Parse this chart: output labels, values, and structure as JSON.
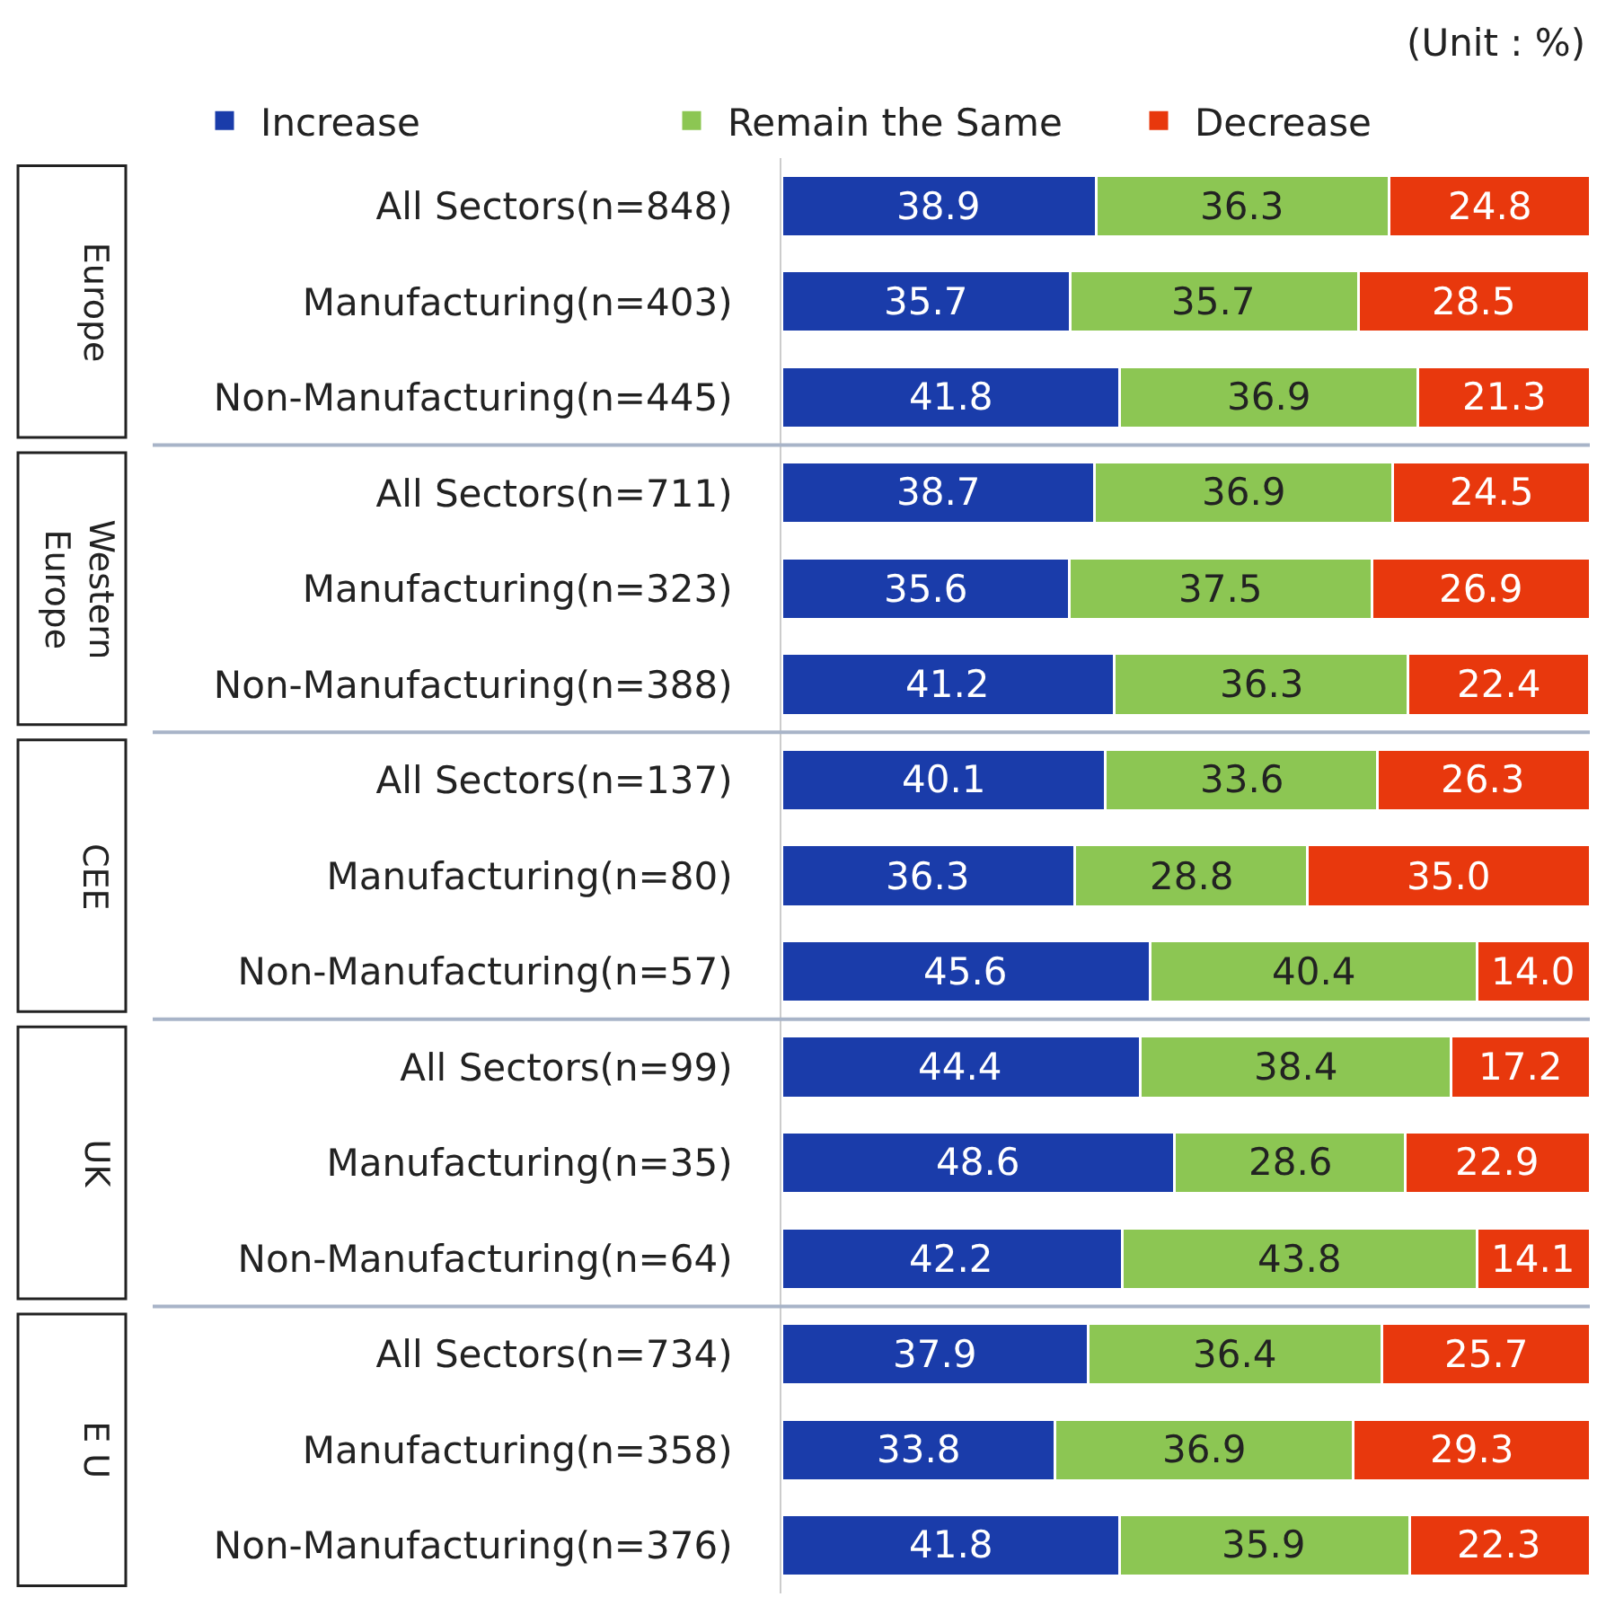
{
  "chart_data": {
    "type": "bar",
    "orientation": "horizontal",
    "stacked": true,
    "data_labels": true,
    "legend": "top",
    "tick_labels": "y",
    "xlim": [
      0,
      100
    ],
    "categories": [
      "All Sectors(n=848)",
      "Manufacturing(n=403)",
      "Non-Manufacturing(n=445)",
      "All Sectors(n=711)",
      "Manufacturing(n=323)",
      "Non-Manufacturing(n=388)",
      "All Sectors(n=137)",
      "Manufacturing(n=80)",
      "Non-Manufacturing(n=57)",
      "All Sectors(n=99)",
      "Manufacturing(n=35)",
      "Non-Manufacturing(n=64)",
      "All Sectors(n=734)",
      "Manufacturing(n=358)",
      "Non-Manufacturing(n=376)"
    ],
    "series": [
      {
        "name": "Increase",
        "color": "#1a3caa",
        "values": [
          38.9,
          35.7,
          41.8,
          38.7,
          35.6,
          41.2,
          40.1,
          36.3,
          45.6,
          44.4,
          48.6,
          42.2,
          37.9,
          33.8,
          41.8
        ]
      },
      {
        "name": "Remain the Same",
        "color": "#8cc653",
        "values": [
          36.3,
          35.7,
          36.9,
          36.9,
          37.5,
          36.3,
          33.6,
          28.8,
          40.4,
          38.4,
          28.6,
          43.8,
          36.4,
          36.9,
          35.9
        ]
      },
      {
        "name": "Decrease",
        "color": "#e8380d",
        "values": [
          24.8,
          28.5,
          21.3,
          24.5,
          26.9,
          22.4,
          26.3,
          35.0,
          14.0,
          17.2,
          22.9,
          14.1,
          25.7,
          29.3,
          22.3
        ],
        "value_labels": [
          "24.8",
          "28.5",
          "21.3",
          "24.5",
          "26.9",
          "22.4",
          "26.3",
          "35.0",
          "14.0",
          "17.2",
          "22.9",
          "14.1",
          "25.7",
          "29.3",
          "22.3"
        ]
      }
    ],
    "annotations": [
      "(Unit : %)",
      "Europe",
      "Western Europe",
      "CEE",
      "UK",
      "E U"
    ]
  }
}
